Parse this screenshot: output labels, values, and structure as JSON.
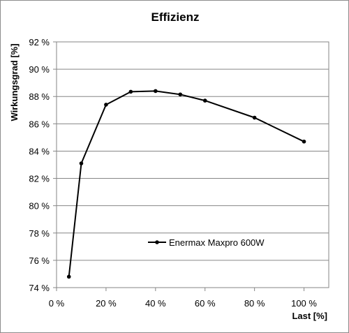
{
  "chart_data": {
    "type": "line",
    "title": "Effizienz",
    "xlabel": "Last [%]",
    "ylabel": "Wirkungsgrad [%]",
    "xlim": [
      0,
      110
    ],
    "ylim": [
      74,
      92
    ],
    "x_ticks": [
      0,
      20,
      40,
      60,
      80,
      100
    ],
    "x_tick_labels": [
      "0 %",
      "20 %",
      "40 %",
      "60 %",
      "80 %",
      "100 %"
    ],
    "y_ticks": [
      74,
      76,
      78,
      80,
      82,
      84,
      86,
      88,
      90,
      92
    ],
    "y_tick_labels": [
      "74 %",
      "76 %",
      "78 %",
      "80 %",
      "82 %",
      "84 %",
      "86 %",
      "88 %",
      "90 %",
      "92 %"
    ],
    "grid": "horizontal",
    "legend_position": "inside-lower-center",
    "series": [
      {
        "name": "Enermax Maxpro 600W",
        "color": "#000000",
        "x": [
          5,
          10,
          20,
          30,
          40,
          50,
          60,
          80,
          100
        ],
        "y": [
          74.8,
          83.1,
          87.4,
          88.35,
          88.4,
          88.15,
          87.7,
          86.45,
          84.7
        ]
      }
    ]
  }
}
